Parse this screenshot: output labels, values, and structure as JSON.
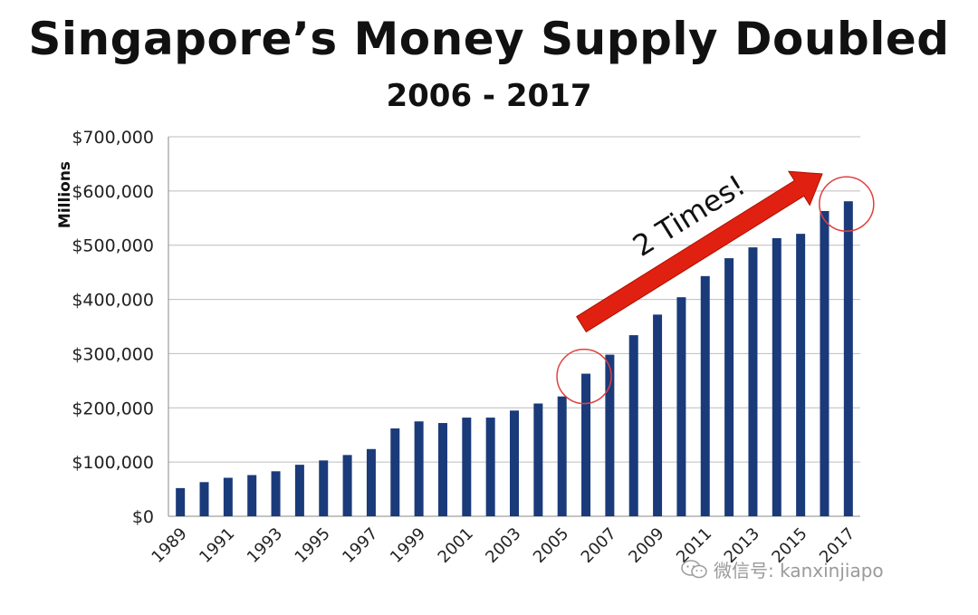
{
  "title": "Singapore’s Money Supply Doubled",
  "subtitle": "2006 - 2017",
  "watermark": "微信号: kanxinjiapo",
  "chart_data": {
    "type": "bar",
    "title": "Singapore’s Money Supply Doubled",
    "subtitle": "2006 - 2017",
    "ylabel": "Millions",
    "xlabel": "",
    "ylim": [
      0,
      700000
    ],
    "y_ticks": [
      0,
      100000,
      200000,
      300000,
      400000,
      500000,
      600000,
      700000
    ],
    "y_tick_labels": [
      "$0",
      "$100,000",
      "$200,000",
      "$300,000",
      "$400,000",
      "$500,000",
      "$600,000",
      "$700,000"
    ],
    "grid": "horizontal",
    "bar_color": "#1a3a7a",
    "categories": [
      "1989",
      "1990",
      "1991",
      "1992",
      "1993",
      "1994",
      "1995",
      "1996",
      "1997",
      "1998",
      "1999",
      "2000",
      "2001",
      "2002",
      "2003",
      "2004",
      "2005",
      "2006",
      "2007",
      "2008",
      "2009",
      "2010",
      "2011",
      "2012",
      "2013",
      "2014",
      "2015",
      "2016",
      "2017"
    ],
    "x_tick_labels": [
      "1989",
      "1991",
      "1993",
      "1995",
      "1997",
      "1999",
      "2001",
      "2003",
      "2005",
      "2007",
      "2009",
      "2011",
      "2013",
      "2015",
      "2017"
    ],
    "values": [
      52000,
      63000,
      71000,
      76000,
      83000,
      95000,
      103000,
      113000,
      124000,
      162000,
      175000,
      172000,
      182000,
      182000,
      195000,
      208000,
      221000,
      263000,
      298000,
      334000,
      372000,
      404000,
      443000,
      476000,
      496000,
      513000,
      521000,
      563000,
      581000
    ],
    "annotations": {
      "arrow_text": "2 Times!",
      "arrow_color": "#e02010",
      "highlighted_categories": [
        "2006",
        "2017"
      ],
      "circle_color": "#e04040"
    }
  }
}
